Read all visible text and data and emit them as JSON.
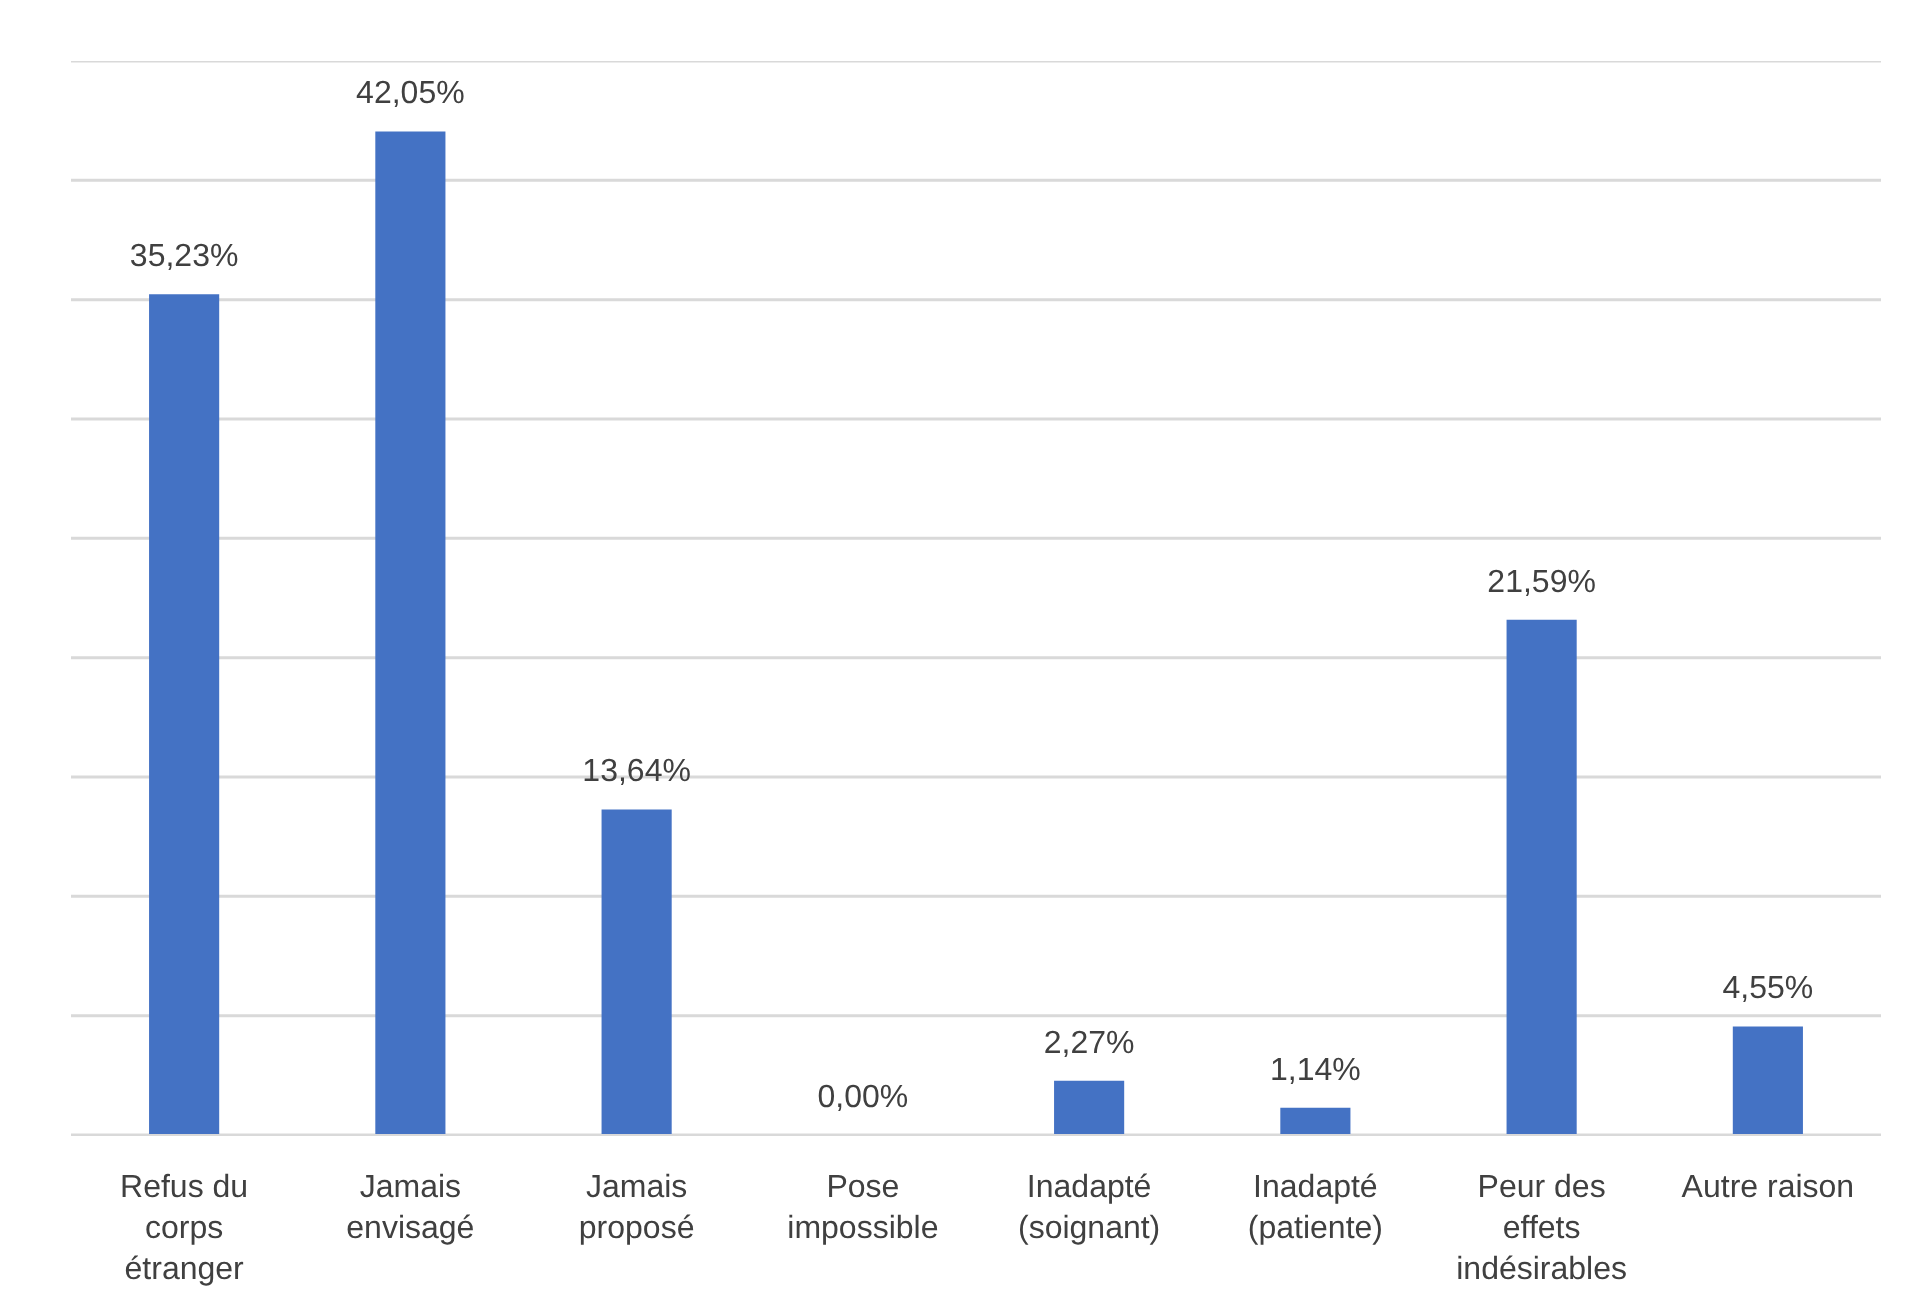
{
  "chart_data": {
    "type": "bar",
    "categories": [
      "Refus du corps étranger",
      "Jamais envisagé",
      "Jamais proposé",
      "Pose impossible",
      "Inadapté (soignant)",
      "Inadapté (patiente)",
      "Peur des effets indésirables",
      "Autre raison"
    ],
    "values": [
      35.23,
      42.05,
      13.64,
      0.0,
      2.27,
      1.14,
      21.59,
      4.55
    ],
    "value_labels": [
      "35,23%",
      "42,05%",
      "13,64%",
      "0,00%",
      "2,27%",
      "1,14%",
      "21,59%",
      "4,55%"
    ],
    "color": "#4472c4",
    "ylim": [
      0,
      45
    ],
    "yticks": [
      {
        "value": 0,
        "label": null
      },
      {
        "value": 5,
        "label": null
      },
      {
        "value": 10,
        "label": null
      },
      {
        "value": 15,
        "label": null
      },
      {
        "value": 20,
        "label": null
      },
      {
        "value": 25,
        "label": null
      },
      {
        "value": 30,
        "label": null
      },
      {
        "value": 35,
        "label": null
      },
      {
        "value": 40,
        "label": null
      },
      {
        "value": 45,
        "label": null
      }
    ],
    "grid": "y",
    "tick_labels": "x"
  }
}
